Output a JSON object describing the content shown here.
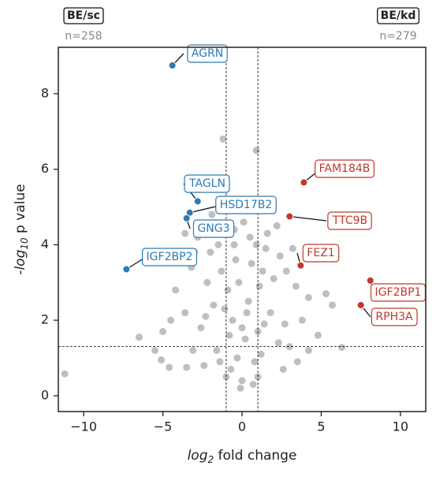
{
  "chart_data": {
    "type": "scatter",
    "left_group": {
      "title": "BE/sc",
      "count": "n=258"
    },
    "right_group": {
      "title": "BE/kd",
      "count": "n=279"
    },
    "xlabel": {
      "base": "log",
      "sub": "2",
      "rest": " fold change"
    },
    "ylabel": {
      "base": "-log",
      "sub": "10",
      "rest": " p value"
    },
    "xlim": [
      -11.6,
      11.6
    ],
    "ylim": [
      -0.42,
      9.23
    ],
    "xticks": [
      {
        "value": -10,
        "label": "−10"
      },
      {
        "value": -5,
        "label": "−5"
      },
      0,
      5,
      10
    ],
    "yticks": [
      0,
      2,
      4,
      6,
      8
    ],
    "vlines": [
      -1,
      1
    ],
    "hline": 1.3,
    "background": {
      "color": "#808080",
      "x": [
        -11.2,
        6.3,
        -1.2,
        0.9,
        -3.5,
        -4.6,
        -5.1,
        -5.5,
        -6.5,
        -5.0,
        -4.2,
        -3.2,
        -2.0,
        -1.5,
        -0.5,
        0.5,
        1.5,
        2.4,
        2.8,
        3.4,
        4.2,
        5.3,
        5.7,
        4.8,
        4.2,
        3.5,
        2.6,
        -2.4,
        -1.0,
        0,
        1.0,
        -0.3,
        0.2,
        -0.6,
        0.4,
        -0.2,
        0.6,
        -1.3,
        1.8,
        -1.8,
        -2.6,
        2.3,
        -1.6,
        1.2,
        -0.9,
        1.1,
        -2.2,
        2.0,
        -0.1,
        0.8,
        -0.8,
        1.4,
        -1.4,
        0.3,
        -0.4,
        0.1,
        -0.2,
        0.3,
        -3.0,
        -2.8,
        3.2,
        1.6,
        -1.9,
        -2.3,
        2.7,
        3.0,
        -3.1,
        -3.6,
        3.8,
        -4.5,
        -0.7,
        0.7,
        -1.1,
        1.3,
        0.0,
        -0.5,
        0.9,
        -2.4,
        2.2,
        -3.6,
        1.0
      ],
      "y": [
        0.58,
        1.28,
        6.8,
        6.5,
        0.75,
        0.75,
        0.95,
        1.2,
        1.55,
        1.7,
        2.8,
        3.4,
        3.8,
        4.0,
        4.4,
        4.2,
        3.9,
        3.7,
        3.3,
        2.9,
        2.6,
        2.7,
        2.4,
        1.6,
        1.2,
        0.9,
        0.7,
        0.8,
        0.5,
        0.4,
        0.5,
        1.0,
        1.5,
        2.0,
        2.5,
        3.0,
        3.5,
        3.3,
        2.2,
        2.4,
        1.8,
        1.4,
        1.2,
        1.1,
        2.8,
        2.9,
        3.0,
        3.1,
        0.2,
        0.9,
        1.6,
        1.9,
        0.9,
        2.2,
        3.6,
        4.6,
        5.0,
        4.9,
        3.8,
        4.2,
        3.9,
        4.3,
        4.8,
        2.1,
        1.9,
        1.3,
        1.2,
        2.2,
        2.0,
        2.0,
        0.7,
        0.3,
        2.3,
        3.3,
        1.8,
        4.0,
        4.0,
        4.5,
        4.5,
        4.3,
        1.7
      ]
    },
    "highlights": [
      {
        "label": "AGRN",
        "x": -4.4,
        "y": 8.75,
        "color": "#2b7bb5"
      },
      {
        "label": "TAGLN",
        "x": -2.8,
        "y": 5.15,
        "color": "#2b7bb5"
      },
      {
        "label": "HSD17B2",
        "x": -3.3,
        "y": 4.85,
        "color": "#2b7bb5"
      },
      {
        "label": "GNG3",
        "x": -3.5,
        "y": 4.7,
        "color": "#2b7bb5"
      },
      {
        "label": "IGF2BP2",
        "x": -7.3,
        "y": 3.35,
        "color": "#2b7bb5"
      },
      {
        "label": "FAM184B",
        "x": 3.9,
        "y": 5.65,
        "color": "#c0392b"
      },
      {
        "label": "TTC9B",
        "x": 3.0,
        "y": 4.75,
        "color": "#c0392b"
      },
      {
        "label": "FEZ1",
        "x": 3.7,
        "y": 3.45,
        "color": "#c0392b"
      },
      {
        "label": "IGF2BP1",
        "x": 8.1,
        "y": 3.05,
        "color": "#c0392b"
      },
      {
        "label": "RPH3A",
        "x": 7.5,
        "y": 2.4,
        "color": "#c0392b"
      }
    ]
  }
}
